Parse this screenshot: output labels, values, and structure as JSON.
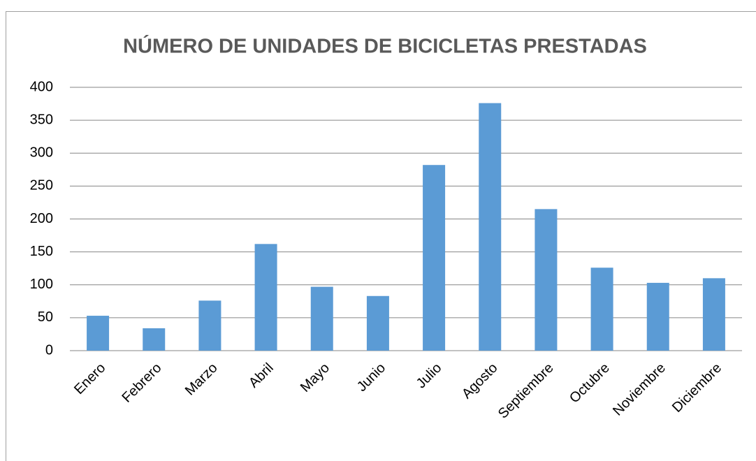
{
  "chart_data": {
    "type": "bar",
    "title": "NÚMERO DE UNIDADES DE BICICLETAS PRESTADAS",
    "categories": [
      "Enero",
      "Febrero",
      "Marzo",
      "Abril",
      "Mayo",
      "Junio",
      "Julio",
      "Agosto",
      "Septiembre",
      "Octubre",
      "Noviembre",
      "Diciembre"
    ],
    "values": [
      53,
      34,
      76,
      162,
      97,
      83,
      282,
      376,
      215,
      126,
      103,
      110
    ],
    "color": "#5b9bd5",
    "ylim": [
      0,
      400
    ],
    "yticks": [
      0,
      50,
      100,
      150,
      200,
      250,
      300,
      350,
      400
    ],
    "grid": true
  }
}
